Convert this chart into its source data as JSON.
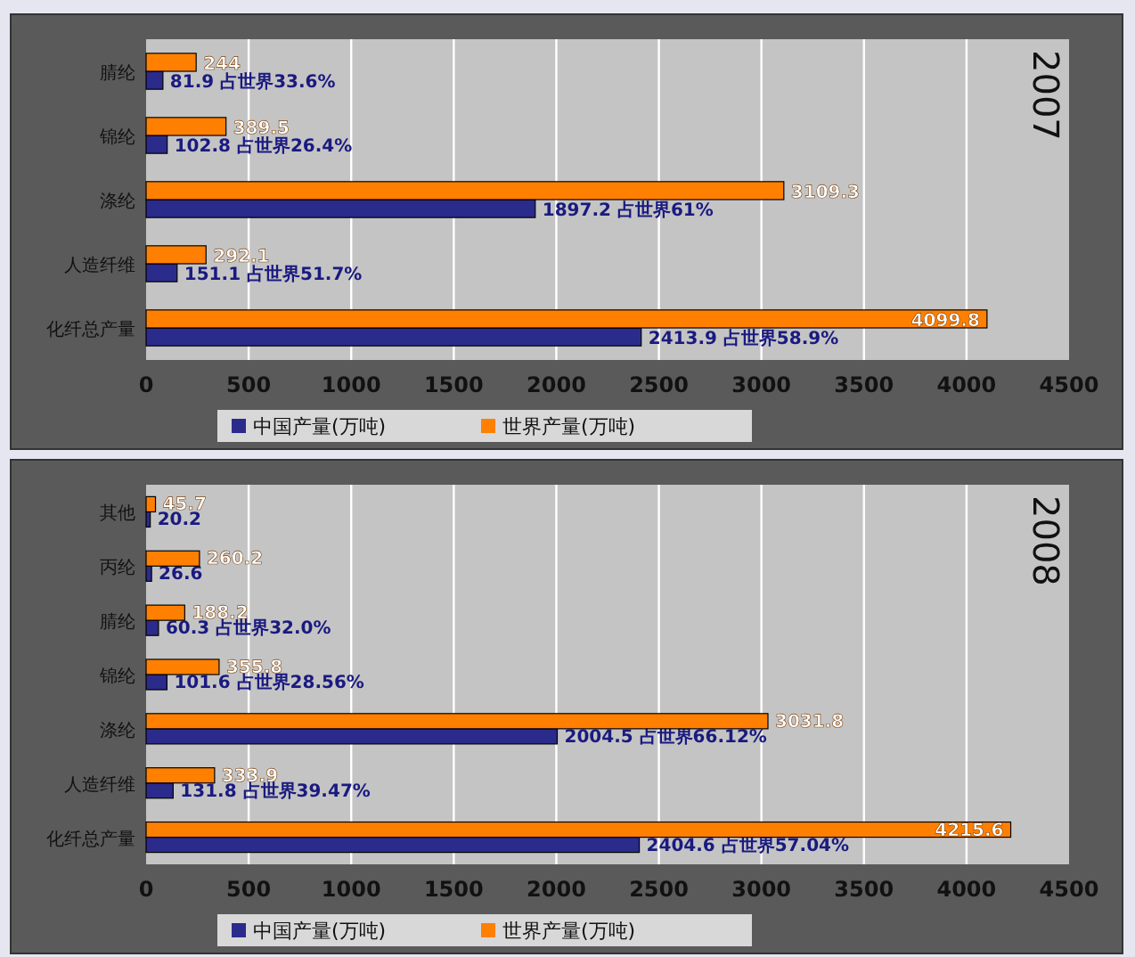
{
  "chart_data": [
    {
      "type": "bar",
      "orientation": "horizontal",
      "title": "2007",
      "categories": [
        "腈纶",
        "锦纶",
        "涤纶",
        "人造纤维",
        "化纤总产量"
      ],
      "series": [
        {
          "name": "中国产量(万吨)",
          "color": "#2b2b8c",
          "values": [
            81.9,
            102.8,
            1897.2,
            151.1,
            2413.9
          ],
          "value_labels": [
            "81.9 占世界33.6%",
            "102.8 占世界26.4%",
            "1897.2 占世界61%",
            "151.1 占世界51.7%",
            "2413.9 占世界58.9%"
          ]
        },
        {
          "name": "世界产量(万吨)",
          "color": "#ff8000",
          "values": [
            244,
            389.5,
            3109.3,
            292.1,
            4099.8
          ],
          "value_labels": [
            "244",
            "389.5",
            "3109.3",
            "292.1",
            "4099.8"
          ]
        }
      ],
      "xlim": [
        0,
        4500
      ],
      "xticks": [
        0,
        500,
        1000,
        1500,
        2000,
        2500,
        3000,
        3500,
        4000,
        4500
      ],
      "grid": "x",
      "legend": "bottom"
    },
    {
      "type": "bar",
      "orientation": "horizontal",
      "title": "2008",
      "categories": [
        "其他",
        "丙纶",
        "腈纶",
        "锦纶",
        "涤纶",
        "人造纤维",
        "化纤总产量"
      ],
      "series": [
        {
          "name": "中国产量(万吨)",
          "color": "#2b2b8c",
          "values": [
            20.2,
            26.6,
            60.3,
            101.6,
            2004.5,
            131.8,
            2404.6
          ],
          "value_labels": [
            "20.2",
            "26.6",
            "60.3 占世界32.0%",
            "101.6 占世界28.56%",
            "2004.5 占世界66.12%",
            "131.8 占世界39.47%",
            "2404.6 占世界57.04%"
          ]
        },
        {
          "name": "世界产量(万吨)",
          "color": "#ff8000",
          "values": [
            45.7,
            260.2,
            188.2,
            355.8,
            3031.8,
            333.9,
            4215.6
          ],
          "value_labels": [
            "45.7",
            "260.2",
            "188.2",
            "355.8",
            "3031.8",
            "333.9",
            "4215.6"
          ]
        }
      ],
      "xlim": [
        0,
        4500
      ],
      "xticks": [
        0,
        500,
        1000,
        1500,
        2000,
        2500,
        3000,
        3500,
        4000,
        4500
      ],
      "grid": "x",
      "legend": "bottom"
    }
  ]
}
